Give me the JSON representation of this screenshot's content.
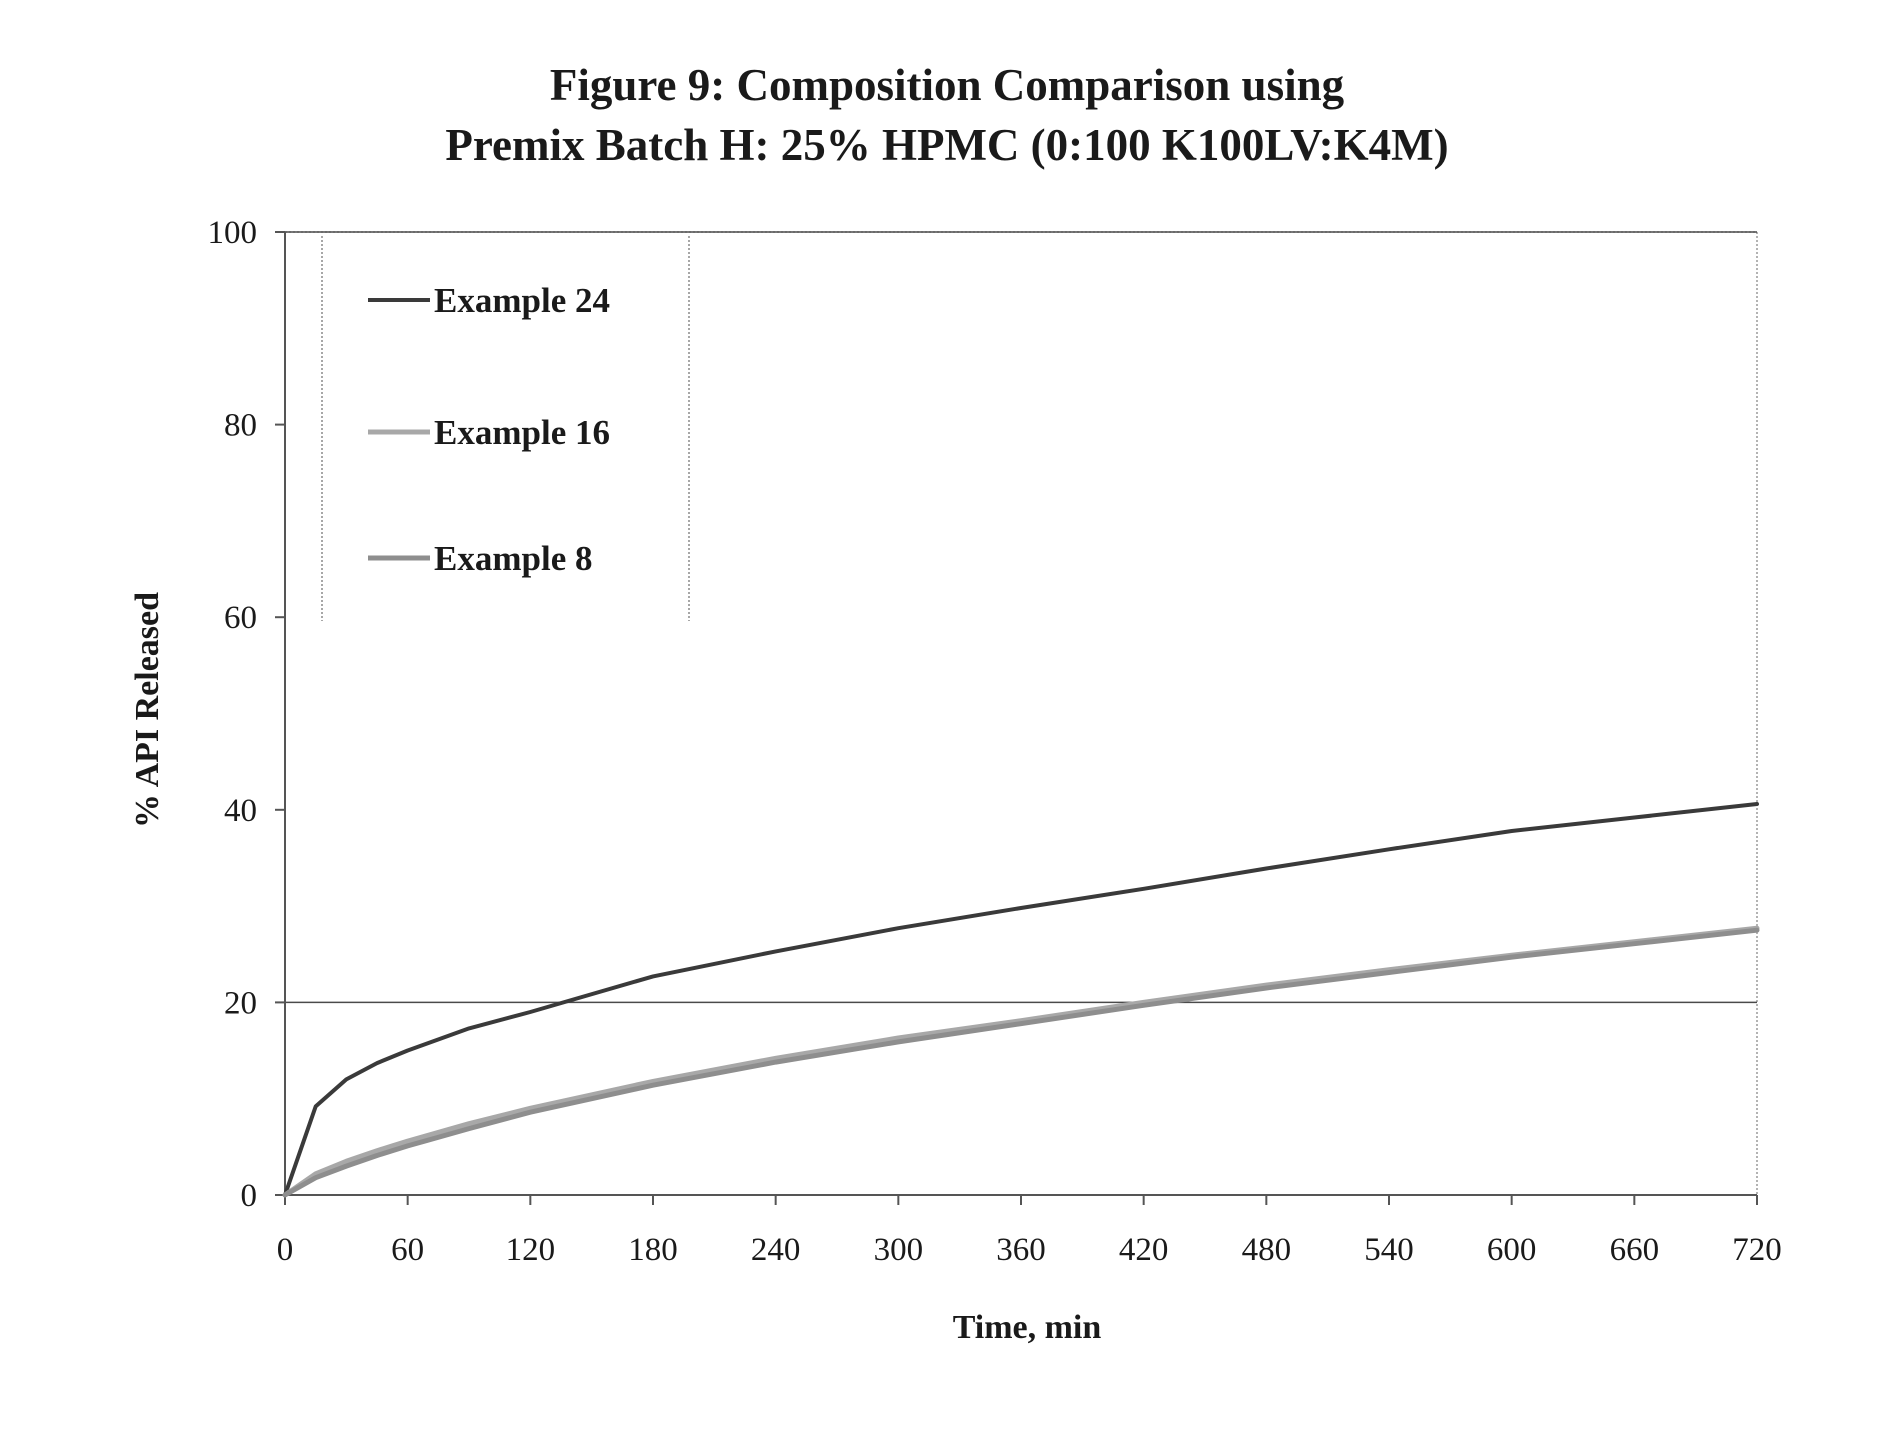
{
  "chart_data": {
    "type": "line",
    "title": [
      "Figure 9: Composition Comparison using",
      "Premix Batch H: 25% HPMC (0:100 K100LV:K4M)"
    ],
    "xlabel": "Time, min",
    "ylabel": "% API Released",
    "xlim": [
      0,
      720
    ],
    "ylim": [
      0,
      100
    ],
    "xticks": [
      0,
      60,
      120,
      180,
      240,
      300,
      360,
      420,
      480,
      540,
      600,
      660,
      720
    ],
    "yticks": [
      0,
      20,
      40,
      60,
      80,
      100
    ],
    "gridlines_y": [
      20,
      100
    ],
    "legend_position": "top-left",
    "x": [
      0,
      15,
      30,
      45,
      60,
      90,
      120,
      180,
      240,
      300,
      360,
      420,
      480,
      540,
      600,
      660,
      720
    ],
    "series": [
      {
        "name": "Example 24",
        "color": "#3a3a3a",
        "values": [
          0,
          9.2,
          12.0,
          13.7,
          15.0,
          17.3,
          19.0,
          22.7,
          25.3,
          27.7,
          29.8,
          31.8,
          33.9,
          35.9,
          37.8,
          39.2,
          40.6
        ]
      },
      {
        "name": "Example 16",
        "color": "#a8a8a8",
        "values": [
          0,
          2.2,
          3.5,
          4.6,
          5.6,
          7.4,
          9.0,
          11.8,
          14.2,
          16.3,
          18.1,
          20.0,
          21.8,
          23.4,
          24.9,
          26.3,
          27.7
        ]
      },
      {
        "name": "Example 8",
        "color": "#8e8e8e",
        "values": [
          0,
          1.8,
          3.0,
          4.1,
          5.1,
          6.9,
          8.6,
          11.4,
          13.8,
          15.9,
          17.8,
          19.7,
          21.5,
          23.1,
          24.7,
          26.1,
          27.5
        ]
      }
    ]
  }
}
